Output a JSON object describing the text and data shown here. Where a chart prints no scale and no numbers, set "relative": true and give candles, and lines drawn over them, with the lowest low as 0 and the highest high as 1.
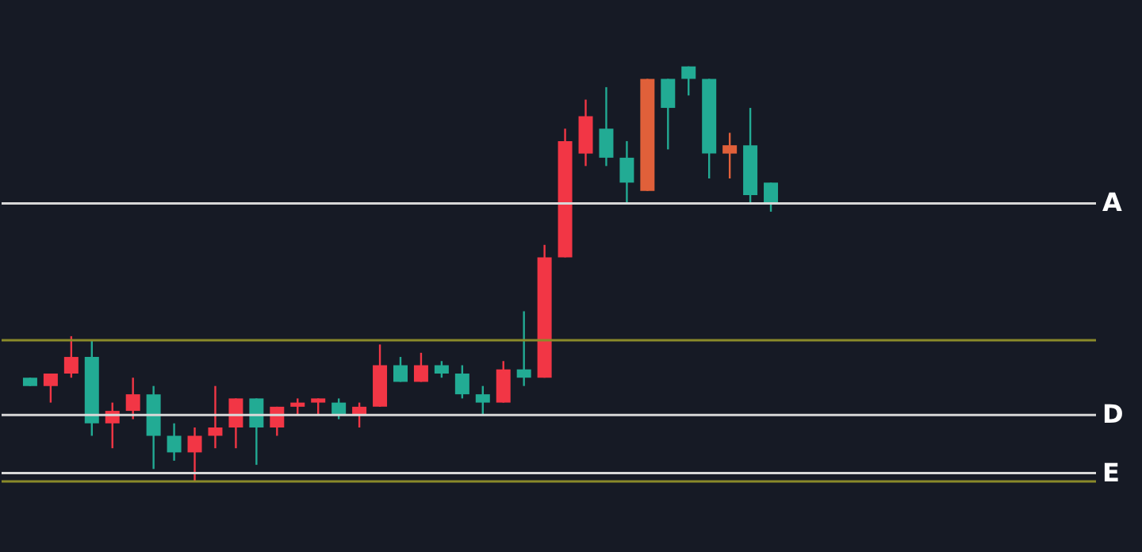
{
  "chart_data": {
    "type": "candlestick",
    "relative": true,
    "categories": [
      null,
      null,
      null,
      null,
      null,
      null,
      null,
      null,
      null,
      null,
      null,
      null,
      null,
      null,
      null,
      null,
      null,
      null,
      null,
      null,
      null,
      null,
      null,
      null,
      null,
      null,
      null,
      null,
      null,
      null,
      null,
      null,
      null,
      null,
      null,
      null,
      null
    ],
    "ohlc": [
      [
        0.25,
        0.25,
        0.23,
        0.23
      ],
      [
        0.23,
        0.26,
        0.19,
        0.26
      ],
      [
        0.26,
        0.35,
        0.25,
        0.3
      ],
      [
        0.3,
        0.34,
        0.11,
        0.14
      ],
      [
        0.14,
        0.19,
        0.08,
        0.17
      ],
      [
        0.17,
        0.25,
        0.15,
        0.21
      ],
      [
        0.21,
        0.23,
        0.03,
        0.11
      ],
      [
        0.11,
        0.14,
        0.05,
        0.07
      ],
      [
        0.07,
        0.13,
        0,
        0.11
      ],
      [
        0.11,
        0.23,
        0.08,
        0.13
      ],
      [
        0.13,
        0.2,
        0.08,
        0.2
      ],
      [
        0.2,
        0.2,
        0.04,
        0.13
      ],
      [
        0.13,
        0.18,
        0.11,
        0.18
      ],
      [
        0.18,
        0.2,
        0.16,
        0.19
      ],
      [
        0.19,
        0.2,
        0.16,
        0.2
      ],
      [
        0.19,
        0.2,
        0.15,
        0.16
      ],
      [
        0.16,
        0.19,
        0.13,
        0.18
      ],
      [
        0.18,
        0.33,
        0.18,
        0.28
      ],
      [
        0.28,
        0.3,
        0.24,
        0.24
      ],
      [
        0.24,
        0.31,
        0.24,
        0.28
      ],
      [
        0.28,
        0.29,
        0.25,
        0.26
      ],
      [
        0.26,
        0.28,
        0.2,
        0.21
      ],
      [
        0.21,
        0.23,
        0.16,
        0.19
      ],
      [
        0.19,
        0.29,
        0.19,
        0.27
      ],
      [
        0.27,
        0.41,
        0.23,
        0.25
      ],
      [
        0.25,
        0.57,
        0.25,
        0.54
      ],
      [
        0.54,
        0.85,
        0.54,
        0.82
      ],
      [
        0.79,
        0.92,
        0.76,
        0.88
      ],
      [
        0.85,
        0.95,
        0.76,
        0.78
      ],
      [
        0.78,
        0.82,
        0.67,
        0.72
      ],
      [
        0.7,
        0.97,
        0.7,
        0.97
      ],
      [
        0.97,
        0.97,
        0.8,
        0.9
      ],
      [
        1.0,
        1.0,
        0.93,
        0.97
      ],
      [
        0.97,
        0.97,
        0.73,
        0.79
      ],
      [
        0.79,
        0.84,
        0.73,
        0.81
      ],
      [
        0.81,
        0.9,
        0.67,
        0.69
      ],
      [
        0.72,
        0.72,
        0.65,
        0.67
      ]
    ],
    "colors": [
      "#22ab94",
      "#f23645",
      "#f23645",
      "#22ab94",
      "#f23645",
      "#f23645",
      "#22ab94",
      "#22ab94",
      "#f23645",
      "#f23645",
      "#f23645",
      "#22ab94",
      "#f23645",
      "#f23645",
      "#f23645",
      "#22ab94",
      "#f23645",
      "#f23645",
      "#22ab94",
      "#f23645",
      "#22ab94",
      "#22ab94",
      "#22ab94",
      "#f23645",
      "#22ab94",
      "#f23645",
      "#f23645",
      "#f23645",
      "#22ab94",
      "#22ab94",
      "#e0603a",
      "#22ab94",
      "#22ab94",
      "#22ab94",
      "#e0603a",
      "#22ab94",
      "#22ab94"
    ],
    "ref_lines": [
      {
        "axis": "y",
        "value": 0.34,
        "color": "#8a8a2a"
      },
      {
        "axis": "y",
        "value": 0.0,
        "color": "#8a8a2a"
      },
      {
        "axis": "y",
        "value": 0.67,
        "label": "A",
        "color": "#d8d8d8"
      },
      {
        "axis": "y",
        "value": 0.16,
        "label": "D",
        "color": "#d8d8d8"
      },
      {
        "axis": "y",
        "value": 0.02,
        "label": "E",
        "color": "#d8d8d8"
      }
    ]
  }
}
